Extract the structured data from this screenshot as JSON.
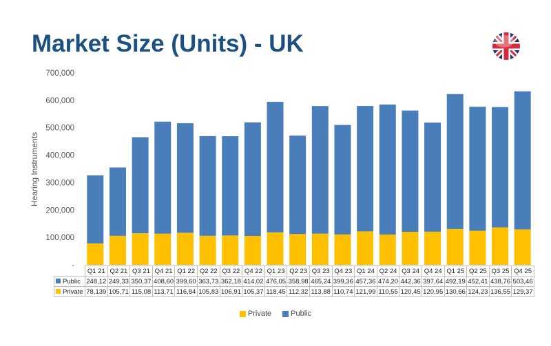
{
  "title": "Market Size (Units) - UK",
  "flag_icon": "uk-flag-icon",
  "colors": {
    "title": "#1c5080",
    "public": "#4a7ebb",
    "private": "#ffc000"
  },
  "chart_data": {
    "type": "bar",
    "stacked": true,
    "title": "",
    "xlabel": "",
    "ylabel": "Hearing Instruments",
    "ylim": [
      0,
      700000
    ],
    "yticks": [
      "-",
      "100,000",
      "200,000",
      "300,000",
      "400,000",
      "500,000",
      "600,000",
      "700,000"
    ],
    "grid": false,
    "legend": "bottom",
    "categories": [
      "Q1 21",
      "Q2 21",
      "Q3 21",
      "Q4 21",
      "Q1 22",
      "Q2 22",
      "Q3 22",
      "Q4 22",
      "Q1 23",
      "Q2 23",
      "Q3 23",
      "Q4 23",
      "Q1 24",
      "Q2 24",
      "Q3 24",
      "Q4 24",
      "Q1 25",
      "Q2 25",
      "Q3 25",
      "Q4 25"
    ],
    "series": [
      {
        "name": "Private",
        "color": "#ffc000",
        "values": [
          78139,
          105710,
          115080,
          113710,
          116840,
          105830,
          106910,
          105370,
          118450,
          112320,
          113880,
          110740,
          121990,
          110550,
          120450,
          120950,
          130660,
          124230,
          136550,
          129370
        ],
        "table_labels": [
          "78,139",
          "105,71",
          "115,08",
          "113,71",
          "116,84",
          "105,83",
          "106,91",
          "105,37",
          "118,45",
          "112,32",
          "113,88",
          "110,74",
          "121,99",
          "110,55",
          "120,45",
          "120,95",
          "130,66",
          "124,23",
          "136,55",
          "129,37"
        ]
      },
      {
        "name": "Public",
        "color": "#4a7ebb",
        "values": [
          248120,
          249330,
          350370,
          408600,
          399600,
          363730,
          362180,
          414020,
          476050,
          358980,
          465240,
          399360,
          457360,
          474200,
          442360,
          397640,
          492190,
          452410,
          438760,
          503460
        ],
        "table_labels": [
          "248,12",
          "249,33",
          "350,37",
          "408,60",
          "399,60",
          "363,73",
          "362,18",
          "414,02",
          "476,05",
          "358,98",
          "465,24",
          "399,36",
          "457,36",
          "474,20",
          "442,36",
          "397,64",
          "492,19",
          "452,41",
          "438,76",
          "503,46"
        ]
      }
    ]
  }
}
